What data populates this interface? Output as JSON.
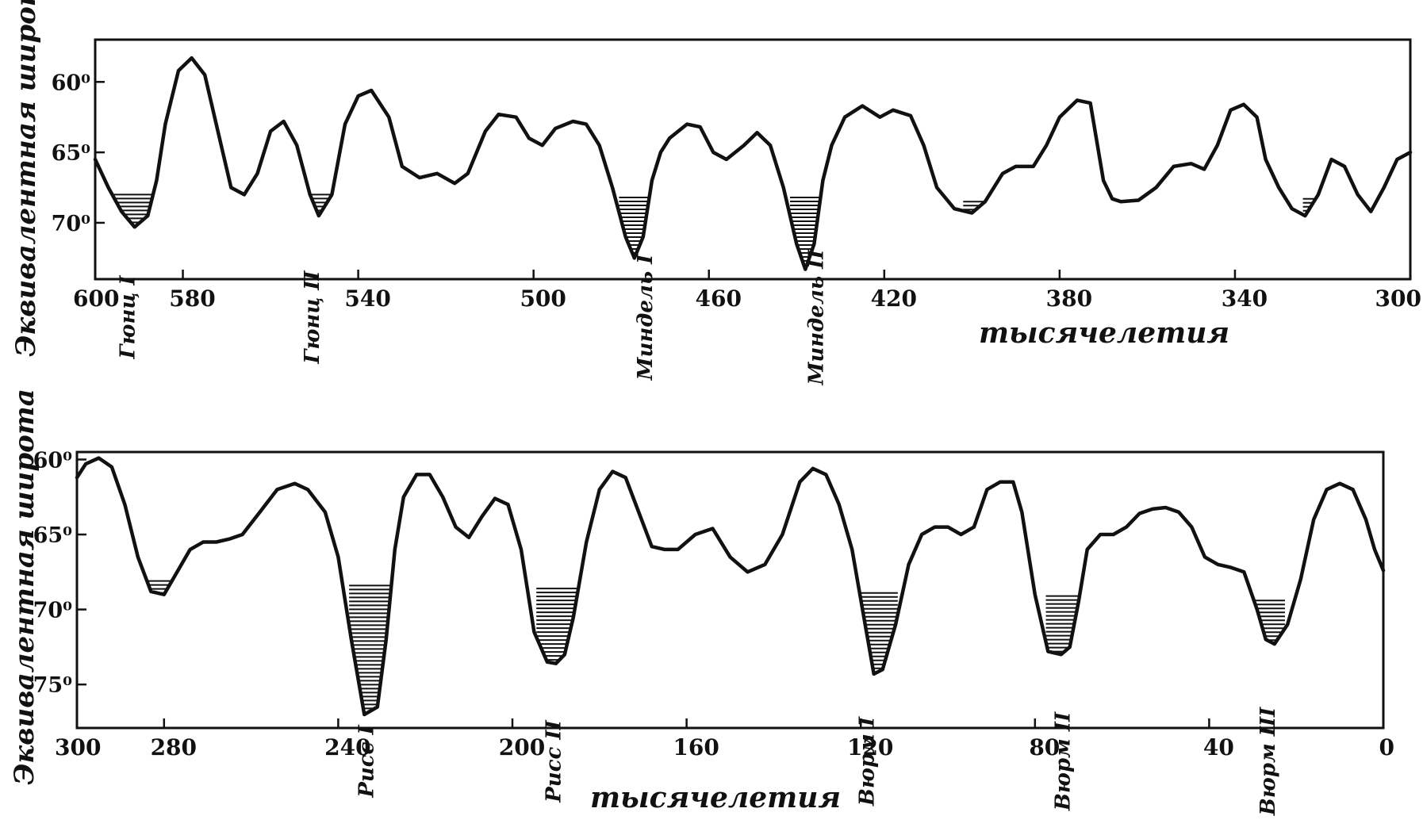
{
  "chart_data": [
    {
      "type": "line",
      "xlabel": "тысячелетия",
      "ylabel": "Эквивалентная широта",
      "xlim": [
        600,
        300
      ],
      "ylim": [
        74,
        57
      ],
      "x_ticks": [
        600,
        580,
        540,
        500,
        460,
        420,
        380,
        340,
        300
      ],
      "y_ticks": [
        60,
        65,
        70
      ],
      "y_tick_labels": [
        "60⁰",
        "65⁰",
        "70⁰"
      ],
      "series": [
        {
          "x": [
            600,
            597,
            594,
            591,
            588,
            586,
            584,
            581,
            578,
            575,
            572,
            569,
            566,
            563,
            560,
            557,
            554,
            551,
            549,
            546,
            543,
            540,
            537,
            533,
            530,
            526,
            522,
            518,
            515,
            511,
            508,
            504,
            501,
            498,
            495,
            491,
            488,
            485,
            482,
            479,
            477,
            475,
            473,
            471,
            469,
            465,
            462,
            459,
            456,
            452,
            449,
            446,
            443,
            440,
            438,
            436,
            434,
            432,
            429,
            425,
            421,
            418,
            414,
            411,
            408,
            404,
            400,
            397,
            393,
            390,
            386,
            383,
            380,
            376,
            373,
            370,
            368,
            366,
            362,
            358,
            354,
            350,
            347,
            344,
            341,
            338,
            335,
            333,
            330,
            327,
            324,
            321,
            318,
            315,
            312,
            309,
            306,
            303,
            300
          ],
          "values": [
            65.5,
            67.5,
            69.2,
            70.3,
            69.5,
            67.0,
            63.0,
            59.2,
            58.3,
            59.5,
            63.5,
            67.5,
            68.0,
            66.5,
            63.5,
            62.8,
            64.5,
            68.0,
            69.5,
            68.0,
            63.0,
            61.0,
            60.6,
            62.5,
            66.0,
            66.8,
            66.5,
            67.2,
            66.5,
            63.5,
            62.3,
            62.5,
            64.0,
            64.5,
            63.3,
            62.8,
            63.0,
            64.5,
            67.5,
            71.0,
            72.5,
            71.0,
            67.0,
            65.0,
            64.0,
            63.0,
            63.2,
            65.0,
            65.5,
            64.5,
            63.6,
            64.5,
            67.5,
            71.5,
            73.3,
            71.5,
            67.0,
            64.5,
            62.5,
            61.7,
            62.5,
            62.0,
            62.4,
            64.5,
            67.5,
            69.0,
            69.3,
            68.5,
            66.5,
            66.0,
            66.0,
            64.5,
            62.5,
            61.3,
            61.5,
            67.0,
            68.3,
            68.5,
            68.4,
            67.5,
            66.0,
            65.8,
            66.2,
            64.5,
            62.0,
            61.6,
            62.5,
            65.5,
            67.5,
            69.0,
            69.5,
            68.0,
            65.5,
            66.0,
            68.0,
            69.2,
            67.5,
            65.5,
            65.0
          ]
        }
      ],
      "annotations": [
        {
          "label": "Гюнц I",
          "x": 591
        },
        {
          "label": "Гюнц II",
          "x": 549
        },
        {
          "label": "Миндель I",
          "x": 473
        },
        {
          "label": "Миндель II",
          "x": 434
        }
      ],
      "shaded_minima": [
        {
          "x_from": 596.5,
          "x_to": 584.5,
          "y_top": 68.0
        },
        {
          "x_from": 552.0,
          "x_to": 546.0,
          "y_top": 68.0
        },
        {
          "x_from": 480.5,
          "x_to": 470.5,
          "y_top": 68.2
        },
        {
          "x_from": 441.5,
          "x_to": 430.5,
          "y_top": 68.2
        },
        {
          "x_from": 402.0,
          "x_to": 392.5,
          "y_top": 68.5
        },
        {
          "x_from": 324.5,
          "x_to": 318.5,
          "y_top": 68.3
        }
      ]
    },
    {
      "type": "line",
      "xlabel": "тысячелетия",
      "ylabel": "Эквивалентная широта",
      "xlim": [
        300,
        0
      ],
      "ylim": [
        77.9,
        59.5
      ],
      "x_ticks": [
        300,
        280,
        240,
        200,
        160,
        120,
        80,
        40,
        0
      ],
      "y_ticks": [
        60,
        65,
        70,
        75
      ],
      "y_tick_labels": [
        "60⁰",
        "65⁰",
        "70⁰",
        "75⁰"
      ],
      "series": [
        {
          "x": [
            300,
            298,
            295,
            292,
            289,
            286,
            283,
            280,
            277,
            274,
            271,
            268,
            265,
            262,
            258,
            254,
            250,
            247,
            243,
            240,
            237,
            234,
            231,
            229,
            227,
            225,
            222,
            219,
            216,
            213,
            210,
            207,
            204,
            201,
            198,
            195,
            192,
            190,
            188,
            186,
            183,
            180,
            177,
            174,
            171,
            168,
            165,
            162,
            158,
            154,
            150,
            146,
            142,
            138,
            134,
            131,
            128,
            125,
            122,
            119,
            117,
            115,
            112,
            109,
            106,
            103,
            100,
            97,
            94,
            91,
            88,
            85,
            83,
            80,
            77,
            74,
            72,
            70,
            68,
            65,
            62,
            59,
            56,
            53,
            50,
            47,
            44,
            41,
            38,
            35,
            32,
            29,
            27,
            25,
            22,
            19,
            16,
            13,
            10,
            7,
            4,
            2,
            0
          ],
          "values": [
            61.2,
            60.3,
            59.9,
            60.5,
            63.0,
            66.5,
            68.8,
            69.0,
            67.5,
            66.0,
            65.5,
            65.5,
            65.3,
            65.0,
            63.5,
            62.0,
            61.6,
            62.0,
            63.5,
            66.5,
            72.0,
            77.0,
            76.5,
            72.0,
            66.0,
            62.5,
            61.0,
            61.0,
            62.5,
            64.5,
            65.2,
            63.8,
            62.6,
            63.0,
            66.0,
            71.5,
            73.5,
            73.6,
            73.0,
            70.5,
            65.5,
            62.0,
            60.8,
            61.2,
            63.5,
            65.8,
            66.0,
            66.0,
            65.0,
            64.6,
            66.5,
            67.5,
            67.0,
            65.0,
            61.5,
            60.6,
            61.0,
            63.0,
            66.0,
            71.0,
            74.3,
            74.0,
            71.0,
            67.0,
            65.0,
            64.5,
            64.5,
            65.0,
            64.5,
            62.0,
            61.5,
            61.5,
            63.5,
            69.0,
            72.8,
            73.0,
            72.5,
            69.5,
            66.0,
            65.0,
            65.0,
            64.5,
            63.6,
            63.3,
            63.2,
            63.5,
            64.5,
            66.5,
            67.0,
            67.2,
            67.5,
            70.0,
            72.0,
            72.3,
            71.0,
            68.0,
            64.0,
            62.0,
            61.6,
            62.0,
            64.0,
            66.0,
            67.4
          ]
        }
      ],
      "annotations": [
        {
          "label": "Рисс I",
          "x": 232
        },
        {
          "label": "Рисс II",
          "x": 189
        },
        {
          "label": "Вюрм I",
          "x": 117
        },
        {
          "label": "Вюрм II",
          "x": 72
        },
        {
          "label": "Вюрм III",
          "x": 25
        }
      ],
      "shaded_minima": [
        {
          "x_from": 285.0,
          "x_to": 276.0,
          "y_top": 68.1
        },
        {
          "x_from": 237.5,
          "x_to": 226.5,
          "y_top": 68.4
        },
        {
          "x_from": 194.5,
          "x_to": 183.5,
          "y_top": 68.6
        },
        {
          "x_from": 122.0,
          "x_to": 111.5,
          "y_top": 68.9
        },
        {
          "x_from": 77.5,
          "x_to": 68.5,
          "y_top": 69.1
        },
        {
          "x_from": 31.0,
          "x_to": 22.5,
          "y_top": 69.4
        }
      ]
    }
  ]
}
